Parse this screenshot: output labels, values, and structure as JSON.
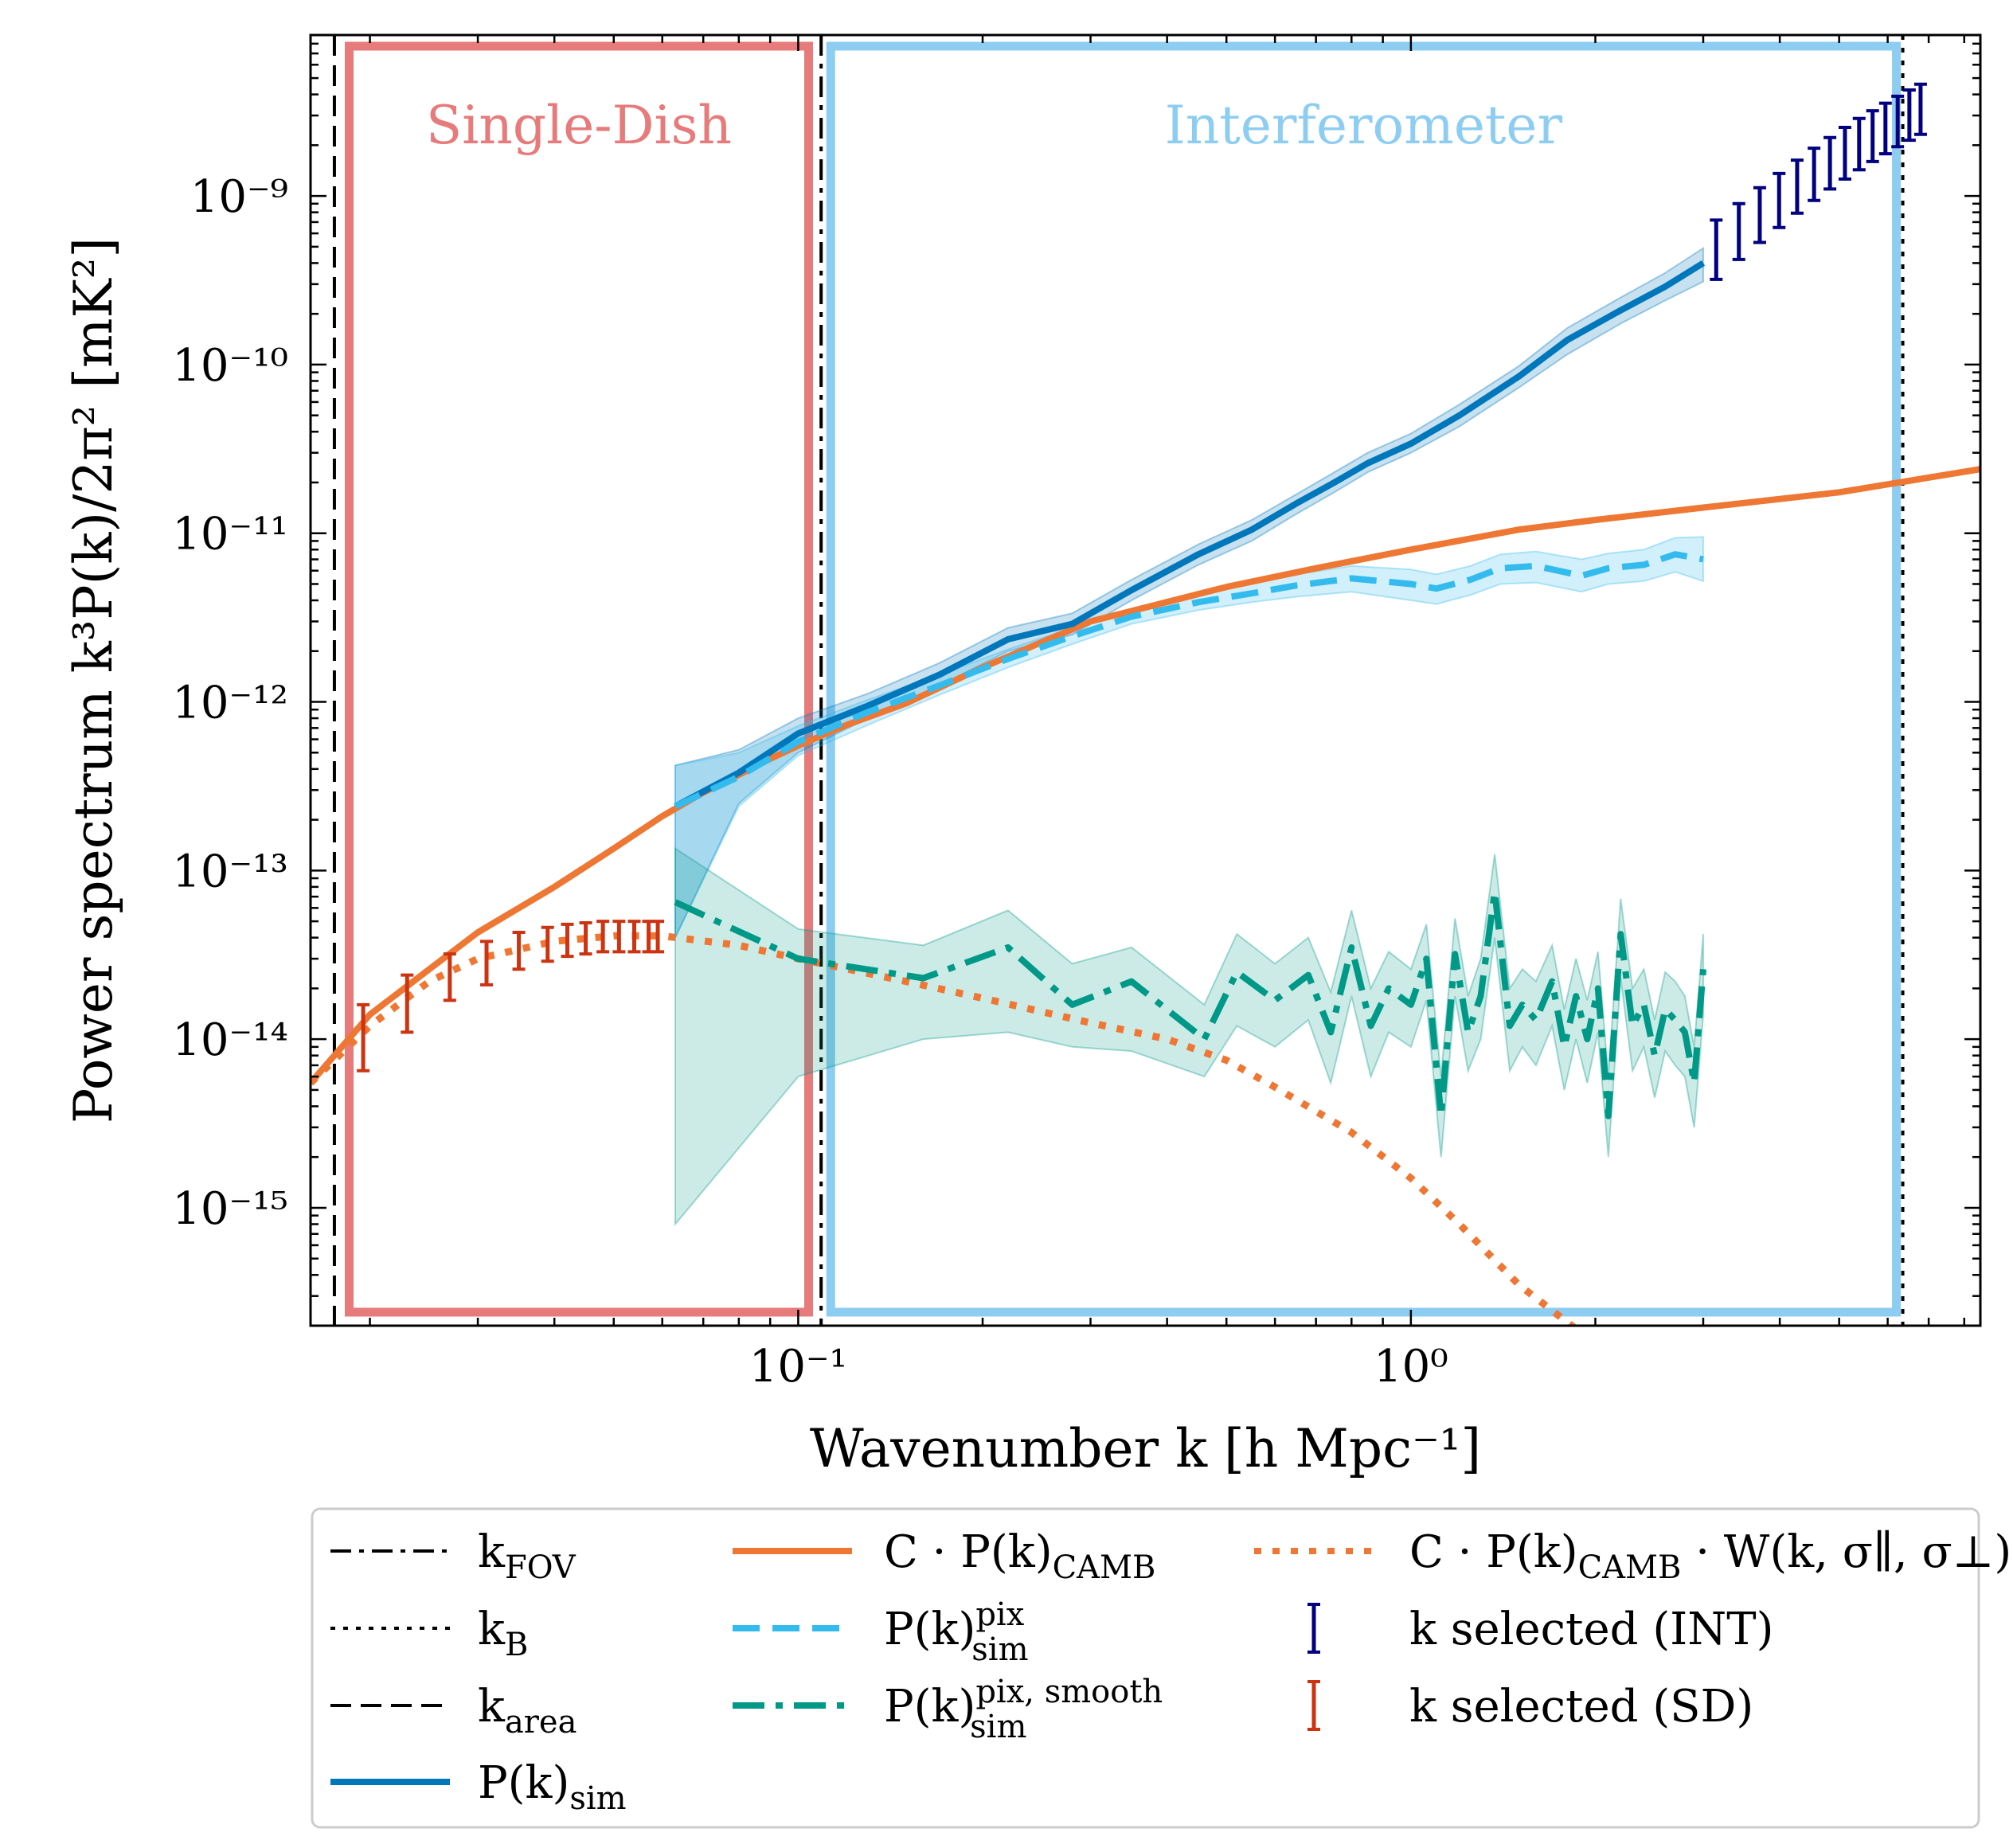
{
  "chart_data": {
    "type": "line",
    "scale": {
      "x": "log",
      "y": "log"
    },
    "xlim": [
      0.016,
      8.5
    ],
    "ylim": [
      2e-16,
      9e-09
    ],
    "xlabel": "Wavenumber k [h Mpc⁻¹]",
    "ylabel": "Power spectrum k³P(k)/2π² [mK²]",
    "x_ticks": [
      {
        "value": 0.1,
        "label": "10⁻¹"
      },
      {
        "value": 1,
        "label": "10⁰"
      }
    ],
    "y_ticks": [
      {
        "value": 1e-09,
        "label": "10⁻⁹"
      },
      {
        "value": 1e-10,
        "label": "10⁻¹⁰"
      },
      {
        "value": 1e-11,
        "label": "10⁻¹¹"
      },
      {
        "value": 1e-12,
        "label": "10⁻¹²"
      },
      {
        "value": 1e-13,
        "label": "10⁻¹³"
      },
      {
        "value": 1e-14,
        "label": "10⁻¹⁴"
      },
      {
        "value": 1e-15,
        "label": "10⁻¹⁵"
      }
    ],
    "regions": [
      {
        "name": "Single-Dish",
        "k_range": [
          0.0185,
          0.104
        ],
        "color": "#e77a7a"
      },
      {
        "name": "Interferometer",
        "k_range": [
          0.113,
          6.2
        ],
        "color": "#8ecdf2"
      }
    ],
    "vlines": [
      {
        "name": "k_FOV",
        "k": 0.109,
        "style": "dashdot"
      },
      {
        "name": "k_B",
        "k": 6.35,
        "style": "dotted"
      },
      {
        "name": "k_area",
        "k": 0.0175,
        "style": "dashed"
      }
    ],
    "series": [
      {
        "name": "C·P(k)CAMB",
        "color": "#ee7733",
        "style": "solid",
        "x": [
          0.016,
          0.02,
          0.025,
          0.03,
          0.04,
          0.05,
          0.06,
          0.07,
          0.08,
          0.09,
          0.1,
          0.12,
          0.15,
          0.2,
          0.3,
          0.5,
          0.7,
          1.0,
          1.5,
          2.0,
          3.0,
          5.0,
          8.5
        ],
        "y": [
          5.5e-15,
          1.4e-14,
          2.6e-14,
          4.3e-14,
          8e-14,
          1.35e-13,
          2.1e-13,
          2.9e-13,
          3.7e-13,
          4.6e-13,
          5.5e-13,
          7.3e-13,
          9.8e-13,
          1.6e-12,
          3e-12,
          4.8e-12,
          6.2e-12,
          8e-12,
          1.05e-11,
          1.2e-11,
          1.42e-11,
          1.75e-11,
          2.4e-11
        ]
      },
      {
        "name": "C·P(k)CAMB·W(k,σ∥,σ⊥)",
        "color": "#ee7733",
        "style": "dotted",
        "x": [
          0.016,
          0.02,
          0.025,
          0.03,
          0.04,
          0.05,
          0.06,
          0.08,
          0.1,
          0.15,
          0.2,
          0.3,
          0.4,
          0.5,
          0.6,
          0.8,
          1.0,
          1.2,
          1.5,
          1.9
        ],
        "y": [
          5.5e-15,
          1.2e-14,
          2.2e-14,
          3e-14,
          3.8e-14,
          4.1e-14,
          4.1e-14,
          3.6e-14,
          3e-14,
          2.2e-14,
          1.75e-14,
          1.25e-14,
          1e-14,
          7.5e-15,
          5.2e-15,
          2.8e-15,
          1.5e-15,
          8e-16,
          3.5e-16,
          1.8e-16
        ]
      },
      {
        "name": "P(k)sim",
        "color": "#0077bb",
        "style": "solid",
        "x": [
          0.063,
          0.08,
          0.1,
          0.13,
          0.17,
          0.22,
          0.28,
          0.35,
          0.45,
          0.55,
          0.65,
          0.75,
          0.85,
          1.0,
          1.2,
          1.5,
          1.8,
          2.2,
          2.6,
          3.0
        ],
        "y": [
          2.4e-13,
          3.8e-13,
          6.5e-13,
          9.5e-13,
          1.45e-12,
          2.35e-12,
          2.9e-12,
          4.6e-12,
          7.5e-12,
          1.05e-11,
          1.5e-11,
          2e-11,
          2.6e-11,
          3.4e-11,
          5e-11,
          8.5e-11,
          1.4e-10,
          2.1e-10,
          2.9e-10,
          4e-10
        ],
        "band_low": [
          4e-14,
          2.5e-13,
          5e-13,
          8e-13,
          1.25e-12,
          2e-12,
          2.5e-12,
          4e-12,
          6.5e-12,
          9e-12,
          1.3e-11,
          1.75e-11,
          2.3e-11,
          3e-11,
          4.3e-11,
          7.3e-11,
          1.15e-10,
          1.75e-10,
          2.4e-10,
          3.1e-10
        ],
        "band_high": [
          4.2e-13,
          5.2e-13,
          8e-13,
          1.12e-12,
          1.7e-12,
          2.75e-12,
          3.35e-12,
          5.3e-12,
          8.6e-12,
          1.2e-11,
          1.7e-11,
          2.3e-11,
          3e-11,
          3.9e-11,
          5.8e-11,
          9.8e-11,
          1.65e-10,
          2.5e-10,
          3.5e-10,
          4.9e-10
        ]
      },
      {
        "name": "P(k)sim pix",
        "color": "#33bbee",
        "style": "dashed",
        "x": [
          0.063,
          0.08,
          0.1,
          0.13,
          0.17,
          0.22,
          0.28,
          0.35,
          0.45,
          0.55,
          0.65,
          0.8,
          1.0,
          1.1,
          1.25,
          1.4,
          1.6,
          1.9,
          2.1,
          2.4,
          2.7,
          3.0
        ],
        "y": [
          2.4e-13,
          3.6e-13,
          5.8e-13,
          8.7e-13,
          1.25e-12,
          1.8e-12,
          2.45e-12,
          3.2e-12,
          3.9e-12,
          4.4e-12,
          4.9e-12,
          5.4e-12,
          5e-12,
          4.7e-12,
          5.3e-12,
          6.2e-12,
          6.4e-12,
          5.6e-12,
          6.2e-12,
          6.5e-12,
          7.5e-12,
          7e-12
        ],
        "band_low": [
          4e-14,
          2.4e-13,
          4.8e-13,
          7.3e-13,
          1.1e-12,
          1.6e-12,
          2.2e-12,
          2.9e-12,
          3.5e-12,
          3.9e-12,
          4.2e-12,
          4.5e-12,
          4e-12,
          3.8e-12,
          4.3e-12,
          5e-12,
          5.1e-12,
          4.5e-12,
          5e-12,
          5.2e-12,
          5.9e-12,
          5.2e-12
        ],
        "band_high": [
          4.2e-13,
          5e-13,
          7.2e-13,
          1.03e-12,
          1.45e-12,
          2.05e-12,
          2.75e-12,
          3.55e-12,
          4.35e-12,
          5e-12,
          5.7e-12,
          6.4e-12,
          6.1e-12,
          5.7e-12,
          6.4e-12,
          7.5e-12,
          7.8e-12,
          7e-12,
          7.6e-12,
          8e-12,
          9.4e-12,
          9.5e-12
        ]
      },
      {
        "name": "P(k)sim pix,smooth",
        "color": "#009988",
        "style": "dashdot",
        "x": [
          0.063,
          0.1,
          0.16,
          0.22,
          0.28,
          0.35,
          0.46,
          0.52,
          0.6,
          0.68,
          0.74,
          0.8,
          0.86,
          0.92,
          1.0,
          1.06,
          1.12,
          1.18,
          1.24,
          1.3,
          1.37,
          1.45,
          1.52,
          1.6,
          1.7,
          1.78,
          1.86,
          1.94,
          2.02,
          2.1,
          2.2,
          2.3,
          2.4,
          2.5,
          2.6,
          2.7,
          2.8,
          2.9,
          3.0
        ],
        "y": [
          6.5e-14,
          3e-14,
          2.3e-14,
          3.5e-14,
          1.6e-14,
          2.2e-14,
          1e-14,
          2.5e-14,
          1.7e-14,
          2.4e-14,
          1.1e-14,
          3.5e-14,
          1.2e-14,
          2e-14,
          1.6e-14,
          3e-14,
          3.5e-15,
          3.2e-14,
          1.1e-14,
          1.8e-14,
          7.5e-14,
          1.2e-14,
          1.6e-14,
          1.3e-14,
          2.2e-14,
          9e-15,
          1.8e-14,
          1e-14,
          2e-14,
          3.5e-15,
          4.2e-14,
          1.2e-14,
          1.6e-14,
          8e-15,
          1.5e-14,
          1.3e-14,
          1.1e-14,
          5.5e-15,
          2.6e-14
        ],
        "band_low": [
          8e-16,
          6e-15,
          1e-14,
          1.1e-14,
          9e-15,
          8.5e-15,
          6e-15,
          1.2e-14,
          9e-15,
          1.3e-14,
          5.5e-15,
          1.8e-14,
          6e-15,
          1.1e-14,
          9e-15,
          1.7e-14,
          2e-15,
          1.8e-14,
          6.5e-15,
          1e-14,
          4e-14,
          6.5e-15,
          9e-15,
          7e-15,
          1.2e-14,
          5e-15,
          1e-14,
          5.5e-15,
          1.1e-14,
          2e-15,
          2.3e-14,
          6.5e-15,
          9e-15,
          4.5e-15,
          8.5e-15,
          7e-15,
          6e-15,
          3e-15,
          1.4e-14
        ],
        "band_high": [
          1.35e-13,
          4.5e-14,
          3.6e-14,
          5.8e-14,
          2.8e-14,
          3.5e-14,
          1.6e-14,
          4.2e-14,
          2.8e-14,
          4e-14,
          1.9e-14,
          5.8e-14,
          2e-14,
          3.3e-14,
          2.6e-14,
          4.8e-14,
          6e-15,
          5.2e-14,
          1.8e-14,
          3e-14,
          1.25e-13,
          2e-14,
          2.6e-14,
          2.2e-14,
          3.6e-14,
          1.5e-14,
          3e-14,
          1.7e-14,
          3.3e-14,
          6e-15,
          6.8e-14,
          2e-14,
          2.6e-14,
          1.3e-14,
          2.5e-14,
          2.2e-14,
          1.8e-14,
          9e-15,
          4.2e-14
        ]
      }
    ],
    "selected_int": {
      "name": "k selected (INT)",
      "color": "#000080",
      "k": [
        3.15,
        3.43,
        3.71,
        3.99,
        4.27,
        4.55,
        4.83,
        5.11,
        5.39,
        5.67,
        5.95,
        6.23,
        6.51,
        6.79
      ],
      "k_note": "14 modes approx",
      "center": [
        5e-10,
        6.4e-10,
        8e-10,
        9.8e-10,
        1.18e-09,
        1.4e-09,
        1.62e-09,
        1.86e-09,
        2.1e-09,
        2.35e-09,
        2.6e-09,
        2.85e-09,
        3.1e-09,
        3.35e-09
      ],
      "low": [
        3.2e-10,
        4.2e-10,
        5.3e-10,
        6.5e-10,
        7.9e-10,
        9.4e-10,
        1.1e-09,
        1.26e-09,
        1.43e-09,
        1.6e-09,
        1.78e-09,
        1.96e-09,
        2.14e-09,
        2.32e-09
      ],
      "high": [
        7.2e-10,
        9e-10,
        1.12e-09,
        1.36e-09,
        1.63e-09,
        1.92e-09,
        2.22e-09,
        2.55e-09,
        2.88e-09,
        3.2e-09,
        3.55e-09,
        3.9e-09,
        4.25e-09,
        4.6e-09
      ]
    },
    "selected_sd": {
      "name": "k selected (SD)",
      "color": "#cc3311",
      "k": [
        0.0195,
        0.023,
        0.027,
        0.031,
        0.035,
        0.039,
        0.042,
        0.045,
        0.048,
        0.051,
        0.054,
        0.057,
        0.059
      ],
      "center": [
        1.1e-14,
        1.7e-14,
        2.4e-14,
        2.9e-14,
        3.4e-14,
        3.7e-14,
        3.9e-14,
        4e-14,
        4.1e-14,
        4.1e-14,
        4.1e-14,
        4.1e-14,
        4.1e-14
      ],
      "low": [
        6.5e-15,
        1.1e-14,
        1.7e-14,
        2.1e-14,
        2.6e-14,
        2.9e-14,
        3.1e-14,
        3.2e-14,
        3.3e-14,
        3.3e-14,
        3.3e-14,
        3.3e-14,
        3.3e-14
      ],
      "high": [
        1.6e-14,
        2.4e-14,
        3.2e-14,
        3.8e-14,
        4.3e-14,
        4.6e-14,
        4.8e-14,
        4.9e-14,
        5e-14,
        5e-14,
        5e-14,
        5e-14,
        5e-14
      ]
    },
    "legend": {
      "placement": "below-plot",
      "col1": [
        {
          "id": "kfov",
          "label": "k",
          "sub": "FOV",
          "style": "dashdot",
          "color": "#000000"
        },
        {
          "id": "kb",
          "label": "k",
          "sub": "B",
          "style": "dotted",
          "color": "#000000"
        },
        {
          "id": "karea",
          "label": "k",
          "sub": "area",
          "style": "dashed",
          "color": "#000000"
        },
        {
          "id": "psim",
          "label": "P(k)",
          "sub": "sim",
          "style": "solid",
          "color": "#0077bb"
        }
      ],
      "col2": [
        {
          "id": "camb",
          "label": "C · P(k)",
          "sub": "CAMB",
          "style": "solid",
          "color": "#ee7733"
        },
        {
          "id": "pix",
          "label": "P(k)",
          "sub": "sim",
          "sup": "pix",
          "style": "dashed",
          "color": "#33bbee"
        },
        {
          "id": "pixsmooth",
          "label": "P(k)",
          "sub": "sim",
          "sup": "pix, smooth",
          "style": "dashdot",
          "color": "#009988"
        }
      ],
      "col3": [
        {
          "id": "cambw",
          "label": "C · P(k)",
          "sub": "CAMB",
          "tail": " · W(k, σ∥, σ⊥)",
          "style": "dotted",
          "color": "#ee7733"
        },
        {
          "id": "selint",
          "label": "k selected (INT)",
          "style": "errorbar",
          "color": "#000080"
        },
        {
          "id": "selsd",
          "label": "k selected (SD)",
          "style": "errorbar",
          "color": "#cc3311"
        }
      ]
    }
  }
}
